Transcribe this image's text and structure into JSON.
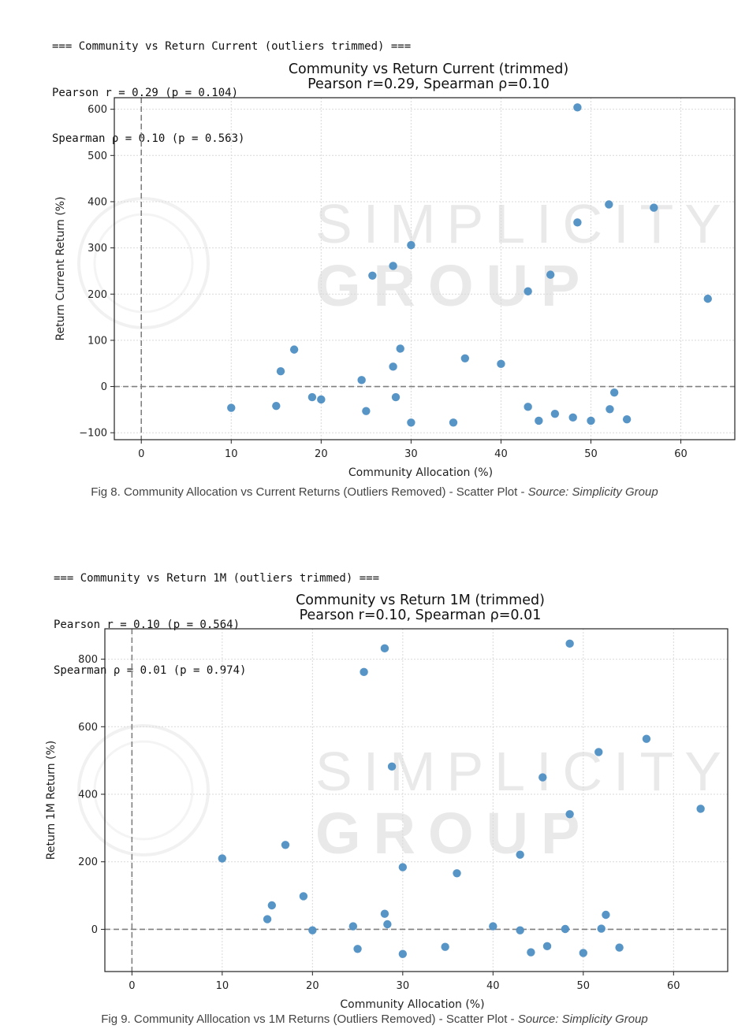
{
  "stats1": {
    "header": "=== Community vs Return Current (outliers trimmed) ===",
    "pearson": "Pearson r = 0.29 (p = 0.104)",
    "spearman": "Spearman ρ = 0.10 (p = 0.563)"
  },
  "stats2": {
    "header": "=== Community vs Return 1M (outliers trimmed) ===",
    "pearson": "Pearson r = 0.10 (p = 0.564)",
    "spearman": "Spearman ρ = 0.01 (p = 0.974)"
  },
  "caption1": {
    "text": "Fig 8. Community Allocation vs Current Returns (Outliers Removed) - Scatter Plot - ",
    "source": "Source: Simplicity Group"
  },
  "caption2": {
    "text": "Fig 9. Community Alllocation vs 1M Returns (Outliers Removed) - Scatter Plot - ",
    "source": "Source: Simplicity Group"
  },
  "watermark": {
    "line1": "SIMPLICITY",
    "line2": "GROUP"
  },
  "colors": {
    "point": "#4f8fc4",
    "grid": "#d9d9d9",
    "refline": "#808080"
  },
  "chart_data": [
    {
      "type": "scatter",
      "title": "Community vs Return Current (trimmed)",
      "subtitle": "Pearson r=0.29, Spearman ρ=0.10",
      "xlabel": "Community Allocation (%)",
      "ylabel": "Return Current Return (%)",
      "xlim": [
        -3,
        66
      ],
      "ylim": [
        -115,
        625
      ],
      "xticks": [
        0,
        10,
        20,
        30,
        40,
        50,
        60
      ],
      "yticks": [
        -100,
        0,
        100,
        200,
        300,
        400,
        500,
        600
      ],
      "grid": true,
      "reference_lines": {
        "x": 0,
        "y": 0
      },
      "points": [
        {
          "x": 10,
          "y": -46
        },
        {
          "x": 15,
          "y": -42
        },
        {
          "x": 15.5,
          "y": 33
        },
        {
          "x": 17,
          "y": 80
        },
        {
          "x": 19,
          "y": -23
        },
        {
          "x": 20,
          "y": -28
        },
        {
          "x": 24.5,
          "y": 14
        },
        {
          "x": 25,
          "y": -53
        },
        {
          "x": 25.7,
          "y": 240
        },
        {
          "x": 28,
          "y": 261
        },
        {
          "x": 28,
          "y": 43
        },
        {
          "x": 28.3,
          "y": -23
        },
        {
          "x": 28.8,
          "y": 82
        },
        {
          "x": 30,
          "y": 306
        },
        {
          "x": 30,
          "y": -78
        },
        {
          "x": 34.7,
          "y": -78
        },
        {
          "x": 36,
          "y": 61
        },
        {
          "x": 40,
          "y": 49
        },
        {
          "x": 43,
          "y": 206
        },
        {
          "x": 43,
          "y": -44
        },
        {
          "x": 44.2,
          "y": -74
        },
        {
          "x": 45.5,
          "y": 242
        },
        {
          "x": 46,
          "y": -59
        },
        {
          "x": 48,
          "y": -67
        },
        {
          "x": 48.5,
          "y": 604
        },
        {
          "x": 48.5,
          "y": 355
        },
        {
          "x": 50,
          "y": -74
        },
        {
          "x": 52,
          "y": 394
        },
        {
          "x": 52.1,
          "y": -49
        },
        {
          "x": 52.6,
          "y": -13
        },
        {
          "x": 54,
          "y": -71
        },
        {
          "x": 57,
          "y": 387
        },
        {
          "x": 63,
          "y": 190
        }
      ]
    },
    {
      "type": "scatter",
      "title": "Community vs Return 1M (trimmed)",
      "subtitle": "Pearson r=0.10, Spearman ρ=0.01",
      "xlabel": "Community Allocation (%)",
      "ylabel": "Return 1M Return (%)",
      "xlim": [
        -3,
        66
      ],
      "ylim": [
        -125,
        890
      ],
      "xticks": [
        0,
        10,
        20,
        30,
        40,
        50,
        60
      ],
      "yticks": [
        0,
        200,
        400,
        600,
        800
      ],
      "grid": true,
      "reference_lines": {
        "x": 0,
        "y": 0
      },
      "points": [
        {
          "x": 10,
          "y": 210
        },
        {
          "x": 15,
          "y": 30
        },
        {
          "x": 15.5,
          "y": 71
        },
        {
          "x": 17,
          "y": 250
        },
        {
          "x": 19,
          "y": 98
        },
        {
          "x": 20,
          "y": -3
        },
        {
          "x": 24.5,
          "y": 9
        },
        {
          "x": 25,
          "y": -58
        },
        {
          "x": 25.7,
          "y": 762
        },
        {
          "x": 28,
          "y": 832
        },
        {
          "x": 28,
          "y": 46
        },
        {
          "x": 28.3,
          "y": 15
        },
        {
          "x": 28.8,
          "y": 482
        },
        {
          "x": 30,
          "y": 184
        },
        {
          "x": 30,
          "y": -73
        },
        {
          "x": 34.7,
          "y": -52
        },
        {
          "x": 36,
          "y": 166
        },
        {
          "x": 40,
          "y": 9
        },
        {
          "x": 43,
          "y": 221
        },
        {
          "x": 43,
          "y": -3
        },
        {
          "x": 44.2,
          "y": -68
        },
        {
          "x": 45.5,
          "y": 450
        },
        {
          "x": 46,
          "y": -50
        },
        {
          "x": 48,
          "y": 1
        },
        {
          "x": 48.5,
          "y": 846
        },
        {
          "x": 48.5,
          "y": 341
        },
        {
          "x": 50,
          "y": -70
        },
        {
          "x": 51.7,
          "y": 525
        },
        {
          "x": 52,
          "y": 2
        },
        {
          "x": 52.5,
          "y": 43
        },
        {
          "x": 54,
          "y": -54
        },
        {
          "x": 57,
          "y": 564
        },
        {
          "x": 63,
          "y": 357
        }
      ]
    }
  ]
}
